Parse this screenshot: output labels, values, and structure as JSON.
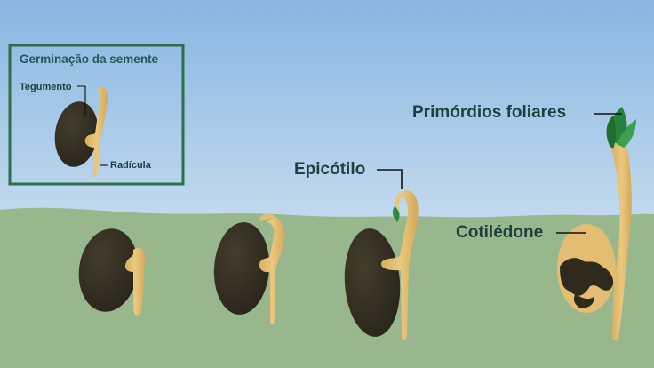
{
  "inset": {
    "title": "Germinação da semente",
    "labels": {
      "tegumento": "Tegumento",
      "radicula": "Radícula"
    }
  },
  "labels": {
    "epicotilo": "Epicótilo",
    "cotiledone": "Cotilédone",
    "primordios": "Primórdios foliares"
  },
  "colors": {
    "sky_top": "#8ab8e2",
    "sky_bottom": "#e7f0f6",
    "ground": "#98b68c",
    "seed": "#2e2a1d",
    "sprout": "#e3bf72",
    "leaf": "#2a8a3e",
    "inset_border": "#2f6e4a",
    "text": "#1d3f3f"
  }
}
